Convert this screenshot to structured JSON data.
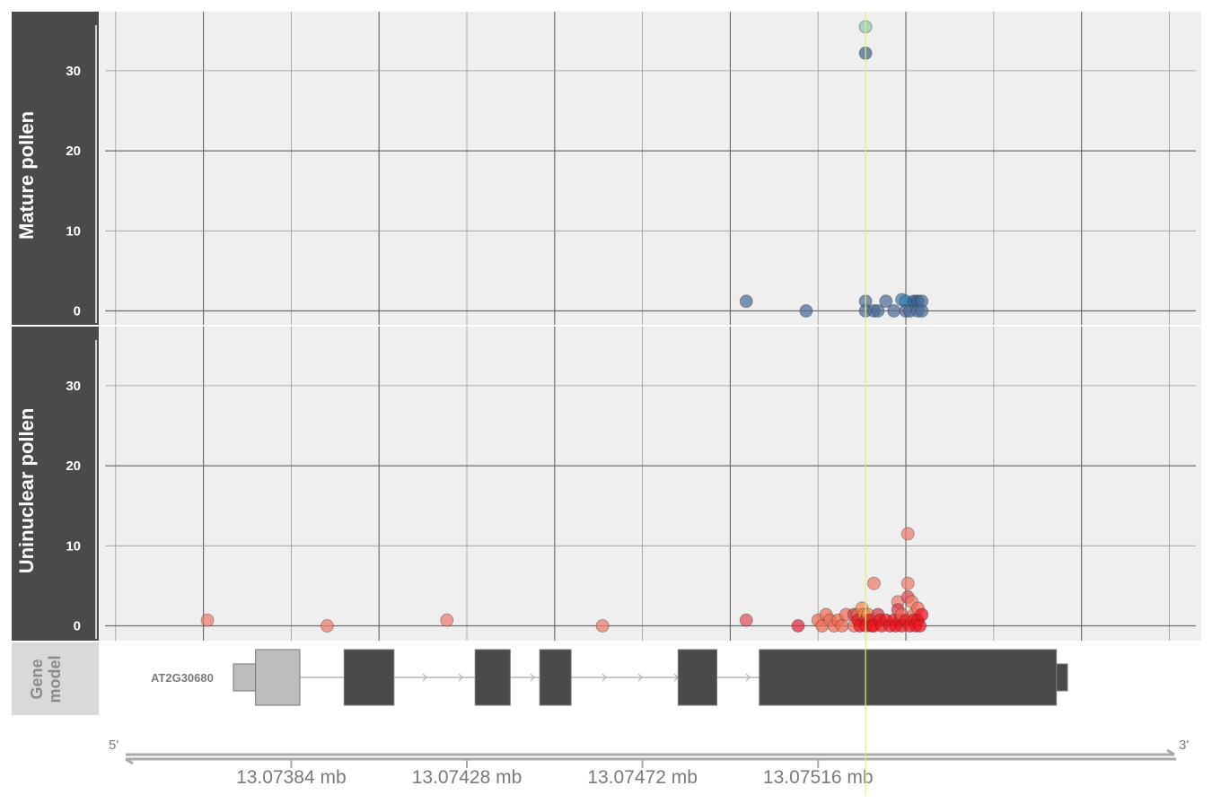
{
  "colors": {
    "panel_bg": "#efefef",
    "strip_bg": "#4a4a4a",
    "strip_text": "#ffffff",
    "gene_strip_bg": "#d9d9d9",
    "gene_strip_text": "#8a8a8a",
    "grid_major": "#6e6e6e",
    "grid_minor": "#9a9a9a",
    "highlight_line": "#e0ec8a",
    "exon_dark": "#4a4a4a",
    "utr_light": "#bdbdbd",
    "intron": "#b5b5b5",
    "axis_text": "#7a7a7a"
  },
  "chart_data": {
    "type": "scatter",
    "x_unit": "mb",
    "xlim": [
      13.07336,
      13.07612
    ],
    "x_ticks": [
      13.07384,
      13.07428,
      13.07472,
      13.07516
    ],
    "x_tick_labels": [
      "13.07384 mb",
      "13.07428 mb",
      "13.07472 mb",
      "13.07516 mb"
    ],
    "highlight_x": 13.075279,
    "ylim": [
      -2,
      37
    ],
    "y_ticks": [
      0,
      10,
      20,
      30
    ],
    "y_tick_labels": [
      "0",
      "10",
      "20",
      "30"
    ],
    "panels": [
      {
        "label": "Mature pollen",
        "palette": "blue",
        "points": [
          [
            13.075279,
            35.5,
            "#8ec3b0"
          ],
          [
            13.075279,
            32.2,
            "#41628f"
          ],
          [
            13.07498,
            1.2,
            "#4c6c98"
          ],
          [
            13.07513,
            0.0,
            "#4c6c98"
          ],
          [
            13.075279,
            1.2,
            "#4c6c98"
          ],
          [
            13.075279,
            0.0,
            "#4c6c98"
          ],
          [
            13.0753,
            0.0,
            "#4c6c98"
          ],
          [
            13.07531,
            0.0,
            "#4c6c98"
          ],
          [
            13.07533,
            1.2,
            "#4c6c98"
          ],
          [
            13.07535,
            0.0,
            "#4c6c98"
          ],
          [
            13.07537,
            1.4,
            "#3a7fb0"
          ],
          [
            13.07538,
            1.2,
            "#3a7fb0"
          ],
          [
            13.07538,
            0.0,
            "#4c6c98"
          ],
          [
            13.07539,
            0.0,
            "#4c6c98"
          ],
          [
            13.0754,
            1.2,
            "#2c5a8c"
          ],
          [
            13.07541,
            1.2,
            "#2c5a8c"
          ],
          [
            13.07541,
            0.0,
            "#4c6c98"
          ],
          [
            13.07542,
            1.2,
            "#4c6c98"
          ],
          [
            13.07542,
            0.0,
            "#4c6c98"
          ]
        ]
      },
      {
        "label": "Uninuclear pollen",
        "palette": "red",
        "points": [
          [
            13.07363,
            0.7,
            "#f07a6a"
          ],
          [
            13.07393,
            0.0,
            "#f07a6a"
          ],
          [
            13.07423,
            0.7,
            "#f07a6a"
          ],
          [
            13.07462,
            0.0,
            "#f07a6a"
          ],
          [
            13.07498,
            0.7,
            "#d9535a"
          ],
          [
            13.07511,
            0.0,
            "#dd2a3a"
          ],
          [
            13.07516,
            0.7,
            "#f26b52"
          ],
          [
            13.07517,
            0.0,
            "#f26b52"
          ],
          [
            13.07518,
            1.4,
            "#f26b52"
          ],
          [
            13.07519,
            0.7,
            "#f26b52"
          ],
          [
            13.0752,
            0.0,
            "#f26b52"
          ],
          [
            13.07521,
            0.7,
            "#f26b52"
          ],
          [
            13.07522,
            0.0,
            "#f26b52"
          ],
          [
            13.07523,
            1.4,
            "#f26b52"
          ],
          [
            13.07525,
            0.0,
            "#f26b52"
          ],
          [
            13.07525,
            1.4,
            "#d33a44"
          ],
          [
            13.07526,
            1.4,
            "#f26b52"
          ],
          [
            13.07526,
            0.7,
            "#f0151f"
          ],
          [
            13.075265,
            0.0,
            "#f0151f"
          ],
          [
            13.07527,
            2.2,
            "#f4884e"
          ],
          [
            13.075275,
            1.4,
            "#f4884e"
          ],
          [
            13.07528,
            0.7,
            "#f0151f"
          ],
          [
            13.07528,
            0.0,
            "#f0151f"
          ],
          [
            13.075285,
            1.4,
            "#f4884e"
          ],
          [
            13.07529,
            0.7,
            "#f0151f"
          ],
          [
            13.075295,
            0.0,
            "#f0151f"
          ],
          [
            13.0753,
            5.3,
            "#f07a6a"
          ],
          [
            13.0753,
            0.0,
            "#f0151f"
          ],
          [
            13.07531,
            1.4,
            "#d33a44"
          ],
          [
            13.075315,
            0.7,
            "#f0151f"
          ],
          [
            13.07532,
            0.0,
            "#f0151f"
          ],
          [
            13.07533,
            0.7,
            "#f0151f"
          ],
          [
            13.07534,
            0.0,
            "#f0151f"
          ],
          [
            13.07535,
            0.7,
            "#f0151f"
          ],
          [
            13.075355,
            0.0,
            "#f0151f"
          ],
          [
            13.07536,
            3.0,
            "#f07a6a"
          ],
          [
            13.07536,
            2.0,
            "#d33a44"
          ],
          [
            13.075365,
            0.7,
            "#f0151f"
          ],
          [
            13.07537,
            1.4,
            "#f26b52"
          ],
          [
            13.07537,
            0.0,
            "#f0151f"
          ],
          [
            13.07538,
            0.7,
            "#f0151f"
          ],
          [
            13.075385,
            11.5,
            "#f07a6a"
          ],
          [
            13.075385,
            5.3,
            "#f07a6a"
          ],
          [
            13.075385,
            3.6,
            "#e0474f"
          ],
          [
            13.07539,
            0.0,
            "#f0151f"
          ],
          [
            13.075395,
            3.0,
            "#f07a6a"
          ],
          [
            13.0754,
            1.4,
            "#f26b52"
          ],
          [
            13.0754,
            0.7,
            "#f0151f"
          ],
          [
            13.075405,
            0.0,
            "#f0151f"
          ],
          [
            13.07541,
            2.2,
            "#f26b52"
          ],
          [
            13.07541,
            0.7,
            "#f0151f"
          ],
          [
            13.075415,
            0.0,
            "#f0151f"
          ],
          [
            13.07542,
            1.4,
            "#f0151f"
          ]
        ]
      }
    ],
    "gene_model": {
      "strip_label": "Gene model",
      "gene_label": "AT2G30680",
      "utr": [
        [
          13.073185,
          13.073245
        ],
        [
          13.075415,
          13.075445
        ]
      ],
      "exons": [
        [
          13.073245,
          13.073365
        ],
        [
          13.073485,
          13.07362
        ],
        [
          13.07384,
          13.073935
        ],
        [
          13.074015,
          13.0741
        ],
        [
          13.07439,
          13.074495
        ],
        [
          13.07461,
          13.075415
        ]
      ]
    },
    "strand_left": "5'",
    "strand_right": "3'"
  }
}
